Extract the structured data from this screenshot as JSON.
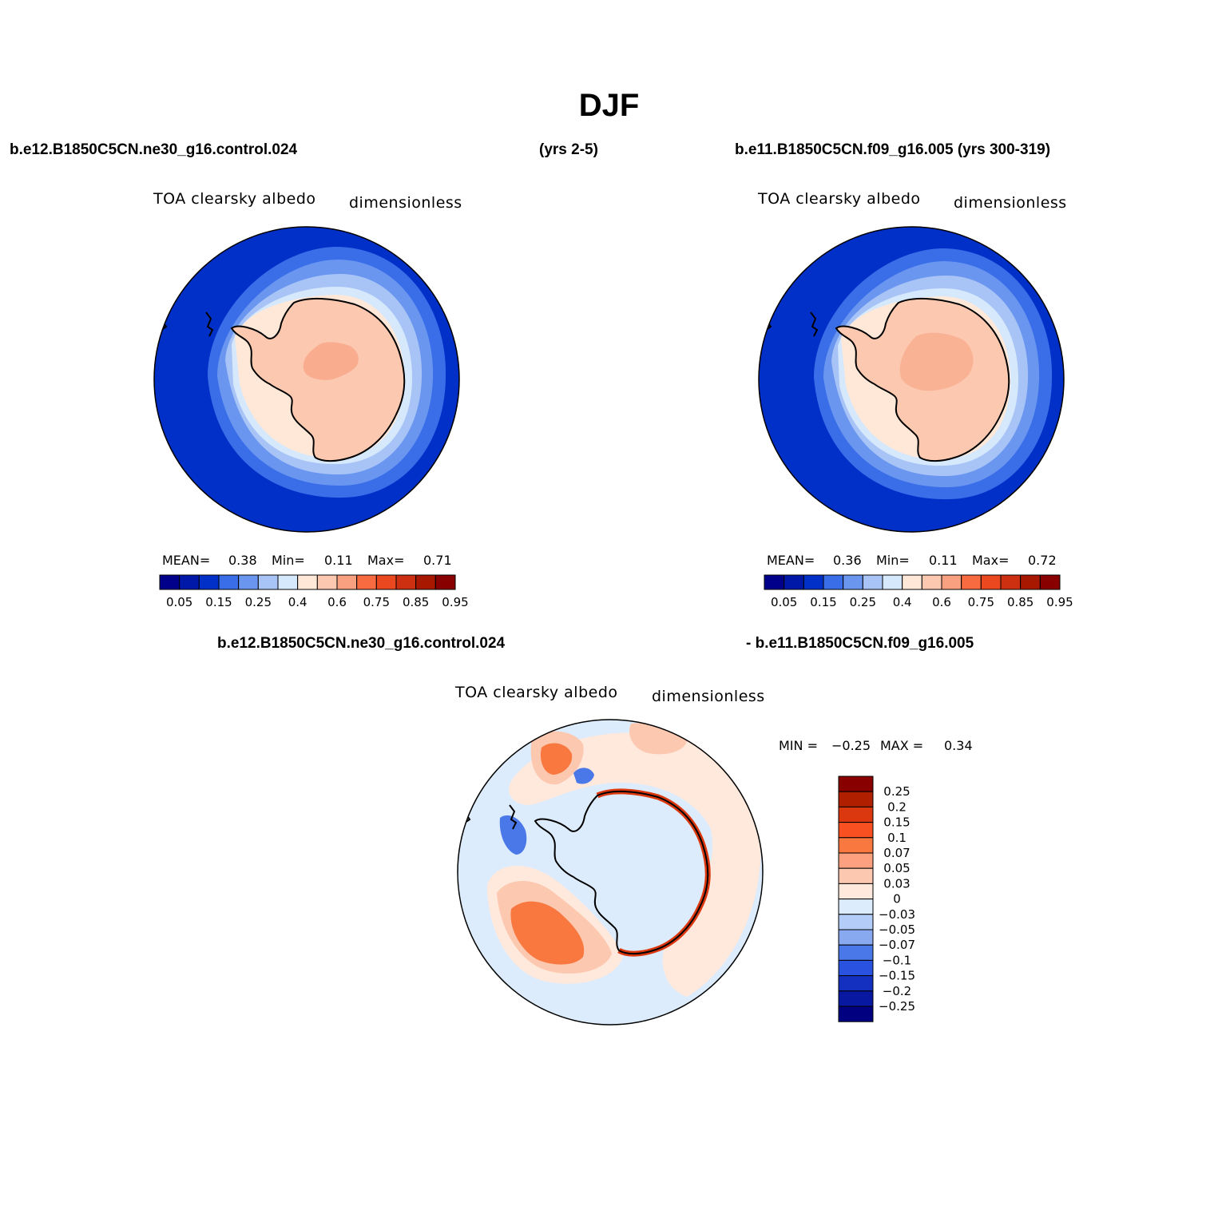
{
  "figure": {
    "title": "DJF",
    "panel_top_left": {
      "case_name": "b.e12.B1850C5CN.ne30_g16.control.024",
      "years": "(yrs 2-5)",
      "variable": "TOA clearsky albedo",
      "units": "dimensionless",
      "stats": {
        "mean_label": "MEAN=",
        "mean": "0.38",
        "min_label": "Min=",
        "min": "0.11",
        "max_label": "Max=",
        "max": "0.71"
      }
    },
    "panel_top_right": {
      "case_name": "b.e11.B1850C5CN.f09_g16.005 (yrs 300-319)",
      "variable": "TOA clearsky albedo",
      "units": "dimensionless",
      "stats": {
        "mean_label": "MEAN=",
        "mean": "0.36",
        "min_label": "Min=",
        "min": "0.11",
        "max_label": "Max=",
        "max": "0.72"
      }
    },
    "panel_bottom": {
      "case_a": "b.e12.B1850C5CN.ne30_g16.control.024",
      "case_b": "- b.e11.B1850C5CN.f09_g16.005",
      "variable": "TOA clearsky albedo",
      "units": "dimensionless",
      "stats": {
        "min_label": "MIN =",
        "min": "−0.25",
        "max_label": "MAX =",
        "max": "0.34"
      }
    },
    "colorbar_abs": {
      "tick_labels": [
        "0.05",
        "0.15",
        "0.25",
        "0.4",
        "0.6",
        "0.75",
        "0.85",
        "0.95"
      ],
      "colors": [
        "#00008a",
        "#0018a8",
        "#0030c8",
        "#3a6ee8",
        "#6a96f0",
        "#a8c4f6",
        "#d6e8fc",
        "#ffe8d8",
        "#fcc8b0",
        "#f8a080",
        "#f86a40",
        "#ec4820",
        "#cc3010",
        "#a81800",
        "#880000"
      ]
    },
    "colorbar_diff": {
      "tick_labels": [
        "0.25",
        "0.2",
        "0.15",
        "0.1",
        "0.07",
        "0.05",
        "0.03",
        "0",
        "−0.03",
        "−0.05",
        "−0.07",
        "−0.1",
        "−0.15",
        "−0.2",
        "−0.25"
      ],
      "colors": [
        "#880000",
        "#b02000",
        "#dc3810",
        "#f85020",
        "#f87840",
        "#fca080",
        "#fcc8b0",
        "#ffe8dc",
        "#dcecfc",
        "#b4ccf8",
        "#88a8f0",
        "#4a78e8",
        "#2a52e0",
        "#1430c0",
        "#0818a0",
        "#000080"
      ]
    },
    "map_colors": {
      "ocean_outer": "#0030c8",
      "ring_1": "#3a6ee8",
      "ring_2": "#6a96f0",
      "ring_3": "#a8c4f6",
      "ring_4": "#d6e8fc",
      "coastal": "#ffe8d8",
      "continent": "#fcc8b0",
      "interior": "#f8a080",
      "diff_background": "#dcecfc",
      "diff_positive_light": "#ffe8dc",
      "diff_positive": "#fcc8b0",
      "diff_positive_strong": "#f87840",
      "diff_positive_max": "#dc3810",
      "diff_negative": "#4a78e8"
    }
  }
}
